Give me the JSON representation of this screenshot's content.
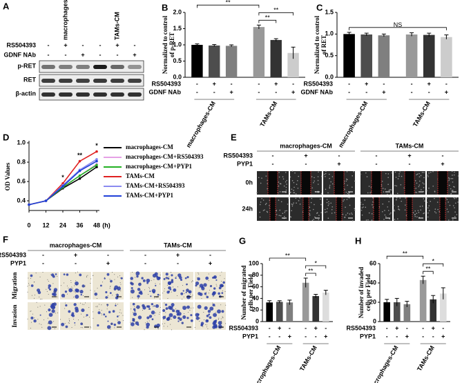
{
  "blot": {
    "panel": "A",
    "groups": [
      {
        "label": "macrophages-CM"
      },
      {
        "label": "TAMs-CM"
      }
    ],
    "conditions": [
      {
        "name": "RS504393",
        "signs": [
          "-",
          "+",
          "-",
          "-",
          "+",
          "-"
        ]
      },
      {
        "name": "GDNF NAb",
        "signs": [
          "-",
          "-",
          "+",
          "-",
          "-",
          "+"
        ]
      }
    ],
    "rows": [
      "p-RET",
      "RET",
      "β-actin"
    ]
  },
  "scratch_assay": {
    "panel": "E",
    "groups": [
      {
        "label": "macrophages-CM"
      },
      {
        "label": "TAMs-CM"
      }
    ],
    "conditions": [
      {
        "name": "RS504393",
        "signs": [
          "-",
          "+",
          "-",
          "-",
          "+",
          "-"
        ]
      },
      {
        "name": "PYP1",
        "signs": [
          "-",
          "-",
          "+",
          "-",
          "-",
          "+"
        ]
      }
    ],
    "rows": [
      "0h",
      "24h"
    ]
  },
  "transwell_assay": {
    "panel": "F",
    "groups": [
      {
        "label": "macrophages-CM"
      },
      {
        "label": "TAMs-CM"
      }
    ],
    "conditions": [
      {
        "name": "RS504393",
        "signs": [
          "-",
          "+",
          "-",
          "-",
          "+",
          "-"
        ]
      },
      {
        "name": "PYP1",
        "signs": [
          "-",
          "-",
          "+",
          "-",
          "-",
          "+"
        ]
      }
    ],
    "rows": [
      "Migration",
      "Invasion"
    ]
  },
  "chart_data": [
    {
      "type": "bar",
      "panel": "B",
      "y_label": [
        "Normalized to control",
        "of p-RET"
      ],
      "values": [
        1.0,
        0.98,
        0.97,
        1.55,
        1.15,
        0.75
      ],
      "errors": [
        0.03,
        0.03,
        0.03,
        0.06,
        0.04,
        0.18
      ],
      "colors": [
        "#000000",
        "#4d4d4d",
        "#7f7f7f",
        "#999999",
        "#333333",
        "#cccccc"
      ],
      "ylim": [
        0,
        2
      ],
      "yticks": [
        {
          "value": 0,
          "label": "0.0"
        },
        {
          "value": 0.5,
          "label": "0.5"
        },
        {
          "value": 1,
          "label": "1.0"
        },
        {
          "value": 1.5,
          "label": "1.5"
        },
        {
          "value": 2,
          "label": "2.0"
        }
      ],
      "brackets": [
        {
          "text": "**",
          "from": 3,
          "to": 4
        },
        {
          "text": "**",
          "from": 3,
          "to": 5
        },
        {
          "text": "**",
          "from": 0,
          "to": 3
        }
      ],
      "conditions": [
        {
          "name": "RS504393",
          "signs": [
            "-",
            "+",
            "-",
            "-",
            "+",
            "-"
          ]
        },
        {
          "name": "GDNF NAb",
          "signs": [
            "-",
            "-",
            "+",
            "-",
            "-",
            "+"
          ]
        }
      ],
      "groups": [
        {
          "label": "macrophages-CM"
        },
        {
          "label": "TAMs-CM"
        }
      ]
    },
    {
      "type": "bar",
      "panel": "C",
      "y_label": [
        "Normalized to control",
        "of RET"
      ],
      "values": [
        1.0,
        0.99,
        0.97,
        0.99,
        0.98,
        0.93
      ],
      "errors": [
        0.04,
        0.03,
        0.03,
        0.04,
        0.04,
        0.05
      ],
      "colors": [
        "#000000",
        "#4d4d4d",
        "#7f7f7f",
        "#999999",
        "#333333",
        "#cccccc"
      ],
      "ylim": [
        0,
        1.5
      ],
      "yticks": [
        {
          "value": 0,
          "label": "0.0"
        },
        {
          "value": 0.5,
          "label": "0.5"
        },
        {
          "value": 1,
          "label": "1.0"
        },
        {
          "value": 1.5,
          "label": "1.5"
        }
      ],
      "brackets": [
        {
          "text": "NS",
          "from": 0,
          "to": 5
        }
      ],
      "conditions": [
        {
          "name": "RS504393",
          "signs": [
            "-",
            "+",
            "-",
            "-",
            "+",
            "-"
          ]
        },
        {
          "name": "GDNF NAb",
          "signs": [
            "-",
            "-",
            "+",
            "-",
            "-",
            "+"
          ]
        }
      ],
      "groups": [
        {
          "label": "macrophages-CM"
        },
        {
          "label": "TAMs-CM"
        }
      ]
    },
    {
      "type": "line",
      "panel": "D",
      "y_label": "OD Values",
      "x_label": "(h)",
      "x": [
        0,
        12,
        24,
        36,
        48
      ],
      "xlim": [
        0,
        48
      ],
      "xticks": [
        0,
        12,
        24,
        36,
        48
      ],
      "ylim": [
        0.3,
        1.0
      ],
      "yticks": [
        0.4,
        0.6,
        0.8,
        {
          "value": 1.0,
          "label": "1.0"
        }
      ],
      "series": [
        {
          "name": "macrophages-CM",
          "color": "#000000",
          "values": [
            0.36,
            0.4,
            0.53,
            0.63,
            0.75
          ]
        },
        {
          "name": "macrophages-CM+RS504393",
          "color": "#e6a0e6",
          "values": [
            0.36,
            0.4,
            0.54,
            0.66,
            0.78
          ]
        },
        {
          "name": "macrophages-CM+PYP1",
          "color": "#22b022",
          "values": [
            0.36,
            0.4,
            0.54,
            0.66,
            0.77
          ]
        },
        {
          "name": "TAMs-CM",
          "color": "#e02020",
          "values": [
            0.36,
            0.4,
            0.58,
            0.81,
            0.91
          ]
        },
        {
          "name": "TAMs-CM+RS504393",
          "color": "#8a8af0",
          "values": [
            0.36,
            0.4,
            0.56,
            0.72,
            0.83
          ]
        },
        {
          "name": "TAMs-CM+PYP1",
          "color": "#1f3fd8",
          "values": [
            0.36,
            0.4,
            0.55,
            0.71,
            0.81
          ]
        }
      ],
      "annotations": [
        {
          "text": "*",
          "x": 24
        },
        {
          "text": "**",
          "x": 36
        },
        {
          "text": "*",
          "x": 48
        }
      ]
    },
    {
      "type": "bar",
      "panel": "G",
      "y_label": [
        "Number of migrated",
        "cells per Field"
      ],
      "values": [
        33,
        34,
        33,
        67,
        44,
        50
      ],
      "errors": [
        3,
        2,
        4,
        8,
        3,
        4
      ],
      "colors": [
        "#000000",
        "#4d4d4d",
        "#7f7f7f",
        "#999999",
        "#333333",
        "#dddddd"
      ],
      "ylim": [
        0,
        100
      ],
      "yticks": [
        0,
        20,
        40,
        60,
        80,
        100
      ],
      "brackets": [
        {
          "text": "**",
          "from": 3,
          "to": 4
        },
        {
          "text": "*",
          "from": 3,
          "to": 5
        },
        {
          "text": "**",
          "from": 0,
          "to": 3
        }
      ],
      "conditions": [
        {
          "name": "RS504393",
          "signs": [
            "-",
            "+",
            "-",
            "-",
            "+",
            "-"
          ]
        },
        {
          "name": "PYP1",
          "signs": [
            "-",
            "-",
            "+",
            "-",
            "-",
            "+"
          ]
        }
      ],
      "groups": [
        {
          "label": "macrophages-CM"
        },
        {
          "label": "TAMs-CM"
        }
      ]
    },
    {
      "type": "bar",
      "panel": "H",
      "y_label": [
        "Number of invaded",
        "cells per Field"
      ],
      "values": [
        20,
        20,
        18,
        43,
        23,
        29
      ],
      "errors": [
        3,
        4,
        3,
        4,
        4,
        6
      ],
      "colors": [
        "#000000",
        "#4d4d4d",
        "#7f7f7f",
        "#999999",
        "#333333",
        "#dddddd"
      ],
      "ylim": [
        0,
        60
      ],
      "yticks": [
        0,
        20,
        40,
        60
      ],
      "brackets": [
        {
          "text": "**",
          "from": 3,
          "to": 4
        },
        {
          "text": "*",
          "from": 3,
          "to": 5
        },
        {
          "text": "**",
          "from": 0,
          "to": 3
        }
      ],
      "conditions": [
        {
          "name": "RS504393",
          "signs": [
            "-",
            "+",
            "-",
            "-",
            "+",
            "-"
          ]
        },
        {
          "name": "PYP1",
          "signs": [
            "-",
            "-",
            "+",
            "-",
            "-",
            "+"
          ]
        }
      ],
      "groups": [
        {
          "label": "macrophages-CM"
        },
        {
          "label": "TAMs-CM"
        }
      ]
    }
  ]
}
